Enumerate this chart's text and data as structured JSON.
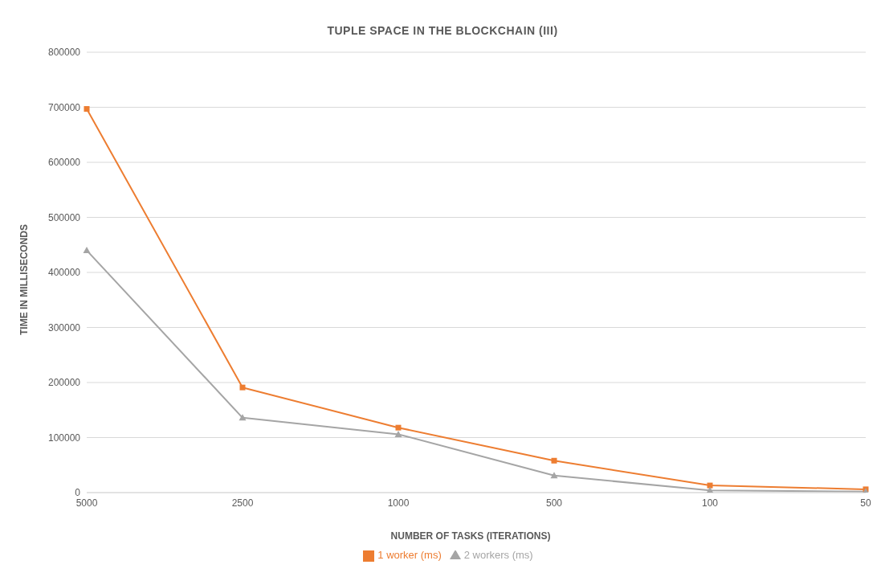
{
  "chart_data": {
    "type": "line",
    "title": "TUPLE SPACE IN THE BLOCKCHAIN (III)",
    "xlabel": "NUMBER OF TASKS (ITERATIONS)",
    "ylabel": "TIME IN MILLISECONDS",
    "categories": [
      "5000",
      "2500",
      "1000",
      "500",
      "100",
      "50"
    ],
    "series": [
      {
        "name": "1 worker (ms)",
        "color": "#ed7d31",
        "marker": "square",
        "values": [
          697000,
          191000,
          118000,
          58000,
          13000,
          6000
        ]
      },
      {
        "name": "2 workers (ms)",
        "color": "#a5a5a5",
        "marker": "triangle",
        "values": [
          440000,
          136000,
          106000,
          31000,
          4000,
          2000
        ]
      }
    ],
    "ylim": [
      0,
      800000
    ],
    "yticks": [
      0,
      100000,
      200000,
      300000,
      400000,
      500000,
      600000,
      700000,
      800000
    ],
    "grid": "y",
    "legend": "bottom"
  }
}
